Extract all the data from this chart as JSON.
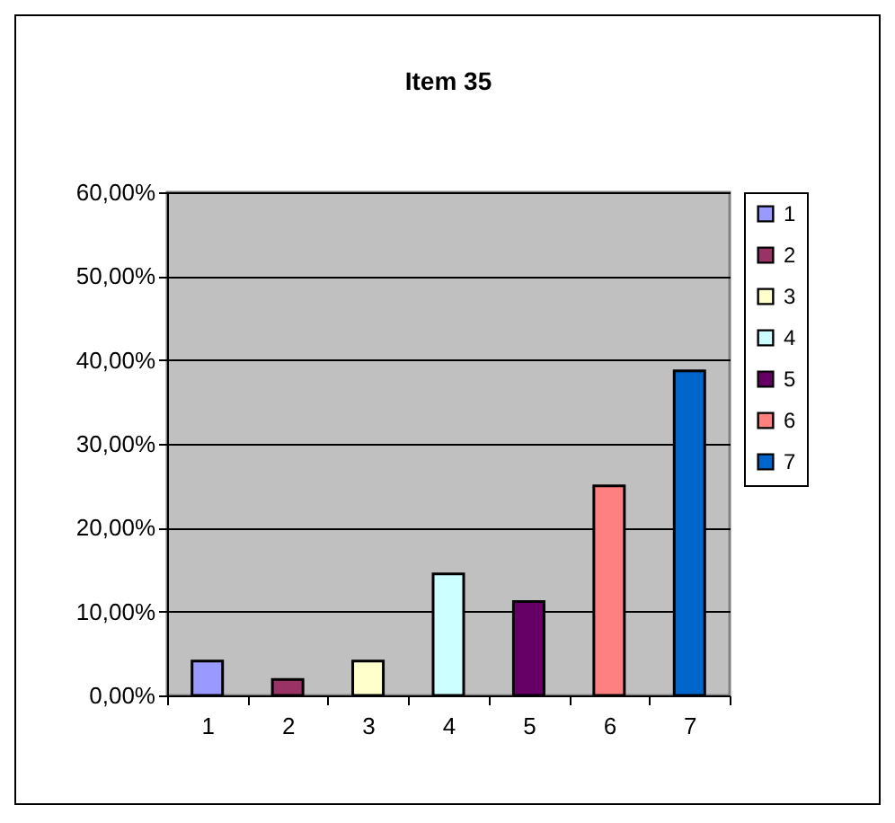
{
  "chart_data": {
    "type": "bar",
    "title": "Item 35",
    "categories": [
      "1",
      "2",
      "3",
      "4",
      "5",
      "6",
      "7"
    ],
    "series": [
      {
        "name": "1",
        "color": "#9999ff",
        "values": [
          4.1,
          null,
          null,
          null,
          null,
          null,
          null
        ]
      },
      {
        "name": "2",
        "color": "#993366",
        "values": [
          null,
          1.9,
          null,
          null,
          null,
          null,
          null
        ]
      },
      {
        "name": "3",
        "color": "#ffffcc",
        "values": [
          null,
          null,
          4.1,
          null,
          null,
          null,
          null
        ]
      },
      {
        "name": "4",
        "color": "#ccffff",
        "values": [
          null,
          null,
          null,
          14.5,
          null,
          null,
          null
        ]
      },
      {
        "name": "5",
        "color": "#660066",
        "values": [
          null,
          null,
          null,
          null,
          11.2,
          null,
          null
        ]
      },
      {
        "name": "6",
        "color": "#ff8080",
        "values": [
          null,
          null,
          null,
          null,
          null,
          25.0,
          null
        ]
      },
      {
        "name": "7",
        "color": "#0066cc",
        "values": [
          null,
          null,
          null,
          null,
          null,
          null,
          38.7
        ]
      }
    ],
    "ylim": [
      0,
      60
    ],
    "yticks": [
      {
        "value": 0,
        "label": "0,00%"
      },
      {
        "value": 10,
        "label": "10,00%"
      },
      {
        "value": 20,
        "label": "20,00%"
      },
      {
        "value": 30,
        "label": "30,00%"
      },
      {
        "value": 40,
        "label": "40,00%"
      },
      {
        "value": 50,
        "label": "50,00%"
      },
      {
        "value": 60,
        "label": "60,00%"
      }
    ],
    "grid": "y",
    "legend": "right"
  }
}
